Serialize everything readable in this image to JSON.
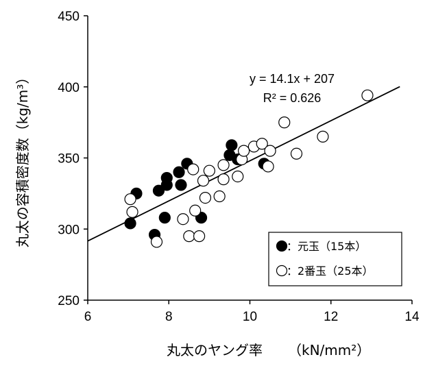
{
  "chart_data": {
    "type": "scatter",
    "xlabel": "丸太のヤング率",
    "xlabel_unit": "（kN/mm²）",
    "ylabel": "丸太の容積密度数（kg/m³）",
    "xlim": [
      6,
      14
    ],
    "ylim": [
      250,
      450
    ],
    "xticks": [
      "6",
      "8",
      "10",
      "12",
      "14"
    ],
    "yticks": [
      "250",
      "300",
      "350",
      "400",
      "450"
    ],
    "grid": false,
    "legend_position": "bottom-right",
    "series": [
      {
        "name": "●：元玉（15本）",
        "marker": "filled-circle",
        "points": [
          [
            7.05,
            304
          ],
          [
            7.2,
            325
          ],
          [
            7.65,
            296
          ],
          [
            7.75,
            327
          ],
          [
            7.9,
            308
          ],
          [
            7.95,
            336
          ],
          [
            8.25,
            340
          ],
          [
            8.3,
            331
          ],
          [
            8.45,
            346
          ],
          [
            8.8,
            308
          ],
          [
            9.5,
            352
          ],
          [
            9.55,
            359
          ],
          [
            9.7,
            349
          ],
          [
            10.35,
            346
          ],
          [
            7.95,
            331
          ]
        ]
      },
      {
        "name": "○：2番玉（25本）",
        "marker": "open-circle",
        "points": [
          [
            7.05,
            321
          ],
          [
            7.1,
            312
          ],
          [
            7.7,
            291
          ],
          [
            8.35,
            307
          ],
          [
            8.5,
            295
          ],
          [
            8.6,
            342
          ],
          [
            8.65,
            313
          ],
          [
            8.75,
            295
          ],
          [
            8.85,
            334
          ],
          [
            8.9,
            322
          ],
          [
            9.0,
            341
          ],
          [
            9.25,
            323
          ],
          [
            9.35,
            335
          ],
          [
            9.35,
            345
          ],
          [
            9.7,
            337
          ],
          [
            9.8,
            349
          ],
          [
            9.85,
            355
          ],
          [
            10.1,
            358
          ],
          [
            10.3,
            360
          ],
          [
            10.45,
            344
          ],
          [
            10.5,
            355
          ],
          [
            10.85,
            375
          ],
          [
            11.15,
            353
          ],
          [
            11.8,
            365
          ],
          [
            12.9,
            394
          ]
        ]
      }
    ],
    "trendline": {
      "slope": 14.1,
      "intercept": 207,
      "x_range": [
        6,
        13.7
      ],
      "equation": "y = 14.1x + 207",
      "r_squared": "R² = 0.626"
    }
  }
}
